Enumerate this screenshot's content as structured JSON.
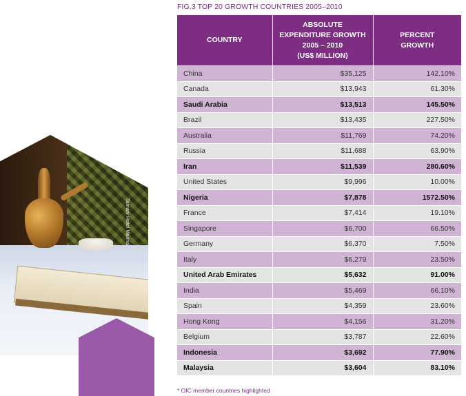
{
  "figure_title": "FIG.3  TOP 20 GROWTH COUNTRIES 2005–2010",
  "photo_credit": "Tamani Hotel Marina",
  "table": {
    "headers": {
      "country": "COUNTRY",
      "absolute": [
        "ABSOLUTE",
        "EXPENDITURE GROWTH",
        "2005 – 2010",
        "(US$ MILLION)"
      ],
      "percent": [
        "PERCENT",
        "GROWTH"
      ]
    },
    "rows": [
      {
        "country": "China",
        "absolute": "$35,125",
        "percent": "142.10%",
        "oic": false
      },
      {
        "country": "Canada",
        "absolute": "$13,943",
        "percent": "61.30%",
        "oic": false
      },
      {
        "country": "Saudi Arabia",
        "absolute": "$13,513",
        "percent": "145.50%",
        "oic": true
      },
      {
        "country": "Brazil",
        "absolute": "$13,435",
        "percent": "227.50%",
        "oic": false
      },
      {
        "country": "Australia",
        "absolute": "$11,769",
        "percent": "74.20%",
        "oic": false
      },
      {
        "country": "Russia",
        "absolute": "$11,688",
        "percent": "63.90%",
        "oic": false
      },
      {
        "country": "Iran",
        "absolute": "$11,539",
        "percent": "280.60%",
        "oic": true
      },
      {
        "country": "United States",
        "absolute": "$9,996",
        "percent": "10.00%",
        "oic": false
      },
      {
        "country": "Nigeria",
        "absolute": "$7,878",
        "percent": "1572.50%",
        "oic": true
      },
      {
        "country": "France",
        "absolute": "$7,414",
        "percent": "19.10%",
        "oic": false
      },
      {
        "country": "Singapore",
        "absolute": "$6,700",
        "percent": "66.50%",
        "oic": false
      },
      {
        "country": "Germany",
        "absolute": "$6,370",
        "percent": "7.50%",
        "oic": false
      },
      {
        "country": "Italy",
        "absolute": "$6,279",
        "percent": "23.50%",
        "oic": false
      },
      {
        "country": "United Arab Emirates",
        "absolute": "$5,632",
        "percent": "91.00%",
        "oic": true
      },
      {
        "country": "India",
        "absolute": "$5,469",
        "percent": "66.10%",
        "oic": false
      },
      {
        "country": "Spain",
        "absolute": "$4,359",
        "percent": "23.60%",
        "oic": false
      },
      {
        "country": "Hong Kong",
        "absolute": "$4,156",
        "percent": "31.20%",
        "oic": false
      },
      {
        "country": "Belgium",
        "absolute": "$3,787",
        "percent": "22.60%",
        "oic": false
      },
      {
        "country": "Indonesia",
        "absolute": "$3,692",
        "percent": "77.90%",
        "oic": true
      },
      {
        "country": "Malaysia",
        "absolute": "$3,604",
        "percent": "83.10%",
        "oic": true
      }
    ]
  },
  "footnote": "* OIC member countries highlighted",
  "colors": {
    "header_bg": "#7d2e83",
    "row_purple": "#cfb5d3",
    "row_grey": "#e4e4e4",
    "accent_text": "#7a2c82",
    "hexagon": "#9a5aa8"
  }
}
